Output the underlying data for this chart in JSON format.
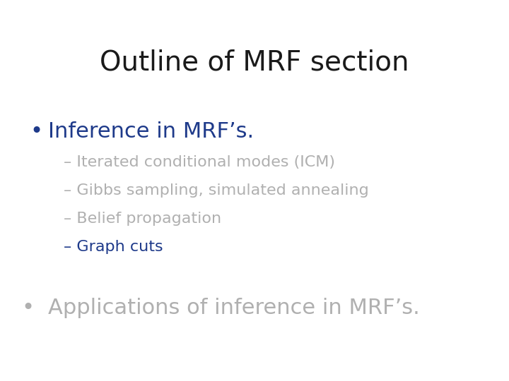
{
  "title": "Outline of MRF section",
  "title_color": "#1a1a1a",
  "title_fontsize": 28,
  "title_font": "Georgia",
  "background_color": "#ffffff",
  "bullet1_text": "Inference in MRF’s.",
  "bullet1_color": "#1e3a8a",
  "bullet1_fontsize": 22,
  "bullet1_font": "Georgia",
  "sub_items": [
    {
      "text": "– Iterated conditional modes (ICM)",
      "color": "#b0b0b0",
      "fontsize": 16
    },
    {
      "text": "– Gibbs sampling, simulated annealing",
      "color": "#b0b0b0",
      "fontsize": 16
    },
    {
      "text": "– Belief propagation",
      "color": "#b0b0b0",
      "fontsize": 16
    },
    {
      "text": "– Graph cuts",
      "color": "#1e3a8a",
      "fontsize": 16
    }
  ],
  "sub_font": "Georgia",
  "bullet2_text": "Applications of inference in MRF’s.",
  "bullet2_color": "#b0b0b0",
  "bullet2_fontsize": 22,
  "bullet2_font": "Georgia",
  "bullet_color": "#1e3a8a",
  "bullet2_bullet_color": "#b0b0b0"
}
